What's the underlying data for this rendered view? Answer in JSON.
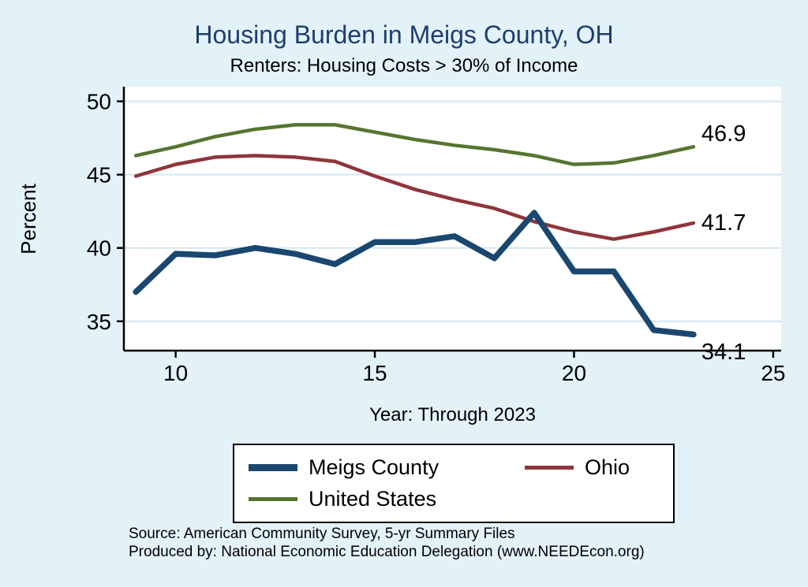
{
  "title": "Housing Burden in Meigs County, OH",
  "subtitle": "Renters: Housing Costs > 30% of Income",
  "colors": {
    "meigs": "#1a476f",
    "ohio": "#90353b",
    "us": "#55752f",
    "background": "#e3f1f8",
    "grid": "#d3e6f2",
    "title_text": "#1c3e70",
    "axis": "#000000"
  },
  "chart_data": {
    "type": "line",
    "x": [
      9,
      10,
      11,
      12,
      13,
      14,
      15,
      16,
      17,
      18,
      19,
      20,
      21,
      22,
      23
    ],
    "series": [
      {
        "name": "United States",
        "color": "us",
        "width": 4.5,
        "end_label": "46.9",
        "values": [
          46.3,
          46.9,
          47.6,
          48.1,
          48.4,
          48.4,
          47.9,
          47.4,
          47.0,
          46.7,
          46.3,
          45.7,
          45.8,
          46.3,
          46.9
        ]
      },
      {
        "name": "Ohio",
        "color": "ohio",
        "width": 4.5,
        "end_label": "41.7",
        "values": [
          44.9,
          45.7,
          46.2,
          46.3,
          46.2,
          45.9,
          44.9,
          44.0,
          43.3,
          42.7,
          41.8,
          41.1,
          40.6,
          41.1,
          41.7
        ]
      },
      {
        "name": "Meigs County",
        "color": "meigs",
        "width": 7.5,
        "end_label": "34.1",
        "values": [
          37.0,
          39.6,
          39.5,
          40.0,
          39.6,
          38.9,
          40.4,
          40.4,
          40.8,
          39.3,
          42.4,
          38.4,
          38.4,
          34.4,
          34.1
        ]
      }
    ],
    "xlabel": "Year: Through 2023",
    "ylabel": "Percent",
    "xticks": [
      10,
      15,
      20,
      25
    ],
    "yticks": [
      35,
      40,
      45,
      50
    ],
    "xlim": [
      8.7,
      25.2
    ],
    "ylim": [
      33,
      51
    ],
    "grid": true,
    "legend_position": "bottom"
  },
  "legend": {
    "order_note": "row1: Meigs County, Ohio; row2: United States"
  },
  "footer": {
    "source": "Source: American Community Survey, 5-yr Summary Files",
    "produced_by": "Produced by: National Economic Education Delegation (www.NEEDEcon.org)"
  }
}
